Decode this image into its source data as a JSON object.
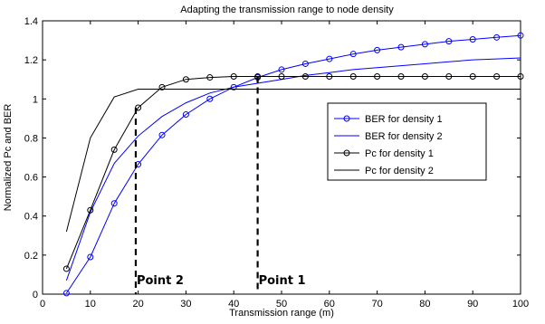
{
  "chart_data": {
    "type": "line",
    "title": "Adapting the transmission range to  node density",
    "xlabel": "Transmission range (m)",
    "ylabel": "Normalized Pc and BER",
    "xlim": [
      0,
      100
    ],
    "ylim": [
      0,
      1.4
    ],
    "xticks": [
      "0",
      "10",
      "20",
      "30",
      "40",
      "50",
      "60",
      "70",
      "80",
      "90",
      "100"
    ],
    "yticks": [
      "0",
      "0.2",
      "0.4",
      "0.6",
      "0.8",
      "1",
      "1.2",
      "1.4"
    ],
    "grid": false,
    "legend_position": "right-middle",
    "series": [
      {
        "name": "BER for density 1",
        "color": "#0000ff",
        "marker": "circle",
        "x": [
          5,
          10,
          15,
          20,
          25,
          30,
          35,
          40,
          45,
          50,
          55,
          60,
          65,
          70,
          75,
          80,
          85,
          90,
          95,
          100
        ],
        "y": [
          0.005,
          0.19,
          0.465,
          0.665,
          0.815,
          0.92,
          1.0,
          1.06,
          1.11,
          1.15,
          1.18,
          1.205,
          1.23,
          1.25,
          1.265,
          1.28,
          1.295,
          1.305,
          1.315,
          1.325
        ]
      },
      {
        "name": "BER for density 2",
        "color": "#0000ff",
        "marker": "none",
        "x": [
          5,
          10,
          15,
          20,
          25,
          30,
          35,
          40,
          45,
          50,
          55,
          60,
          65,
          70,
          75,
          80,
          85,
          90,
          95,
          100
        ],
        "y": [
          0.07,
          0.42,
          0.67,
          0.81,
          0.91,
          0.98,
          1.03,
          1.06,
          1.08,
          1.1,
          1.12,
          1.135,
          1.15,
          1.16,
          1.17,
          1.18,
          1.19,
          1.2,
          1.205,
          1.21
        ]
      },
      {
        "name": "Pc for density 1",
        "color": "#000000",
        "marker": "circle",
        "x": [
          5,
          10,
          15,
          20,
          25,
          30,
          35,
          40,
          45,
          50,
          55,
          60,
          65,
          70,
          75,
          80,
          85,
          90,
          95,
          100
        ],
        "y": [
          0.13,
          0.43,
          0.74,
          0.955,
          1.06,
          1.1,
          1.11,
          1.115,
          1.115,
          1.115,
          1.115,
          1.115,
          1.115,
          1.115,
          1.115,
          1.115,
          1.115,
          1.115,
          1.115,
          1.115
        ]
      },
      {
        "name": "Pc for density 2",
        "color": "#000000",
        "marker": "none",
        "x": [
          5,
          10,
          15,
          20,
          25,
          30,
          35,
          40,
          45,
          50,
          55,
          60,
          65,
          70,
          75,
          80,
          85,
          90,
          95,
          100
        ],
        "y": [
          0.32,
          0.8,
          1.01,
          1.05,
          1.05,
          1.05,
          1.05,
          1.05,
          1.05,
          1.05,
          1.05,
          1.05,
          1.05,
          1.05,
          1.05,
          1.05,
          1.05,
          1.05,
          1.05,
          1.05
        ]
      }
    ],
    "annotations": [
      {
        "label": "Point 2",
        "x": 19.5,
        "y": 0.955
      },
      {
        "label": "Point 1",
        "x": 45,
        "y": 1.115
      }
    ]
  }
}
